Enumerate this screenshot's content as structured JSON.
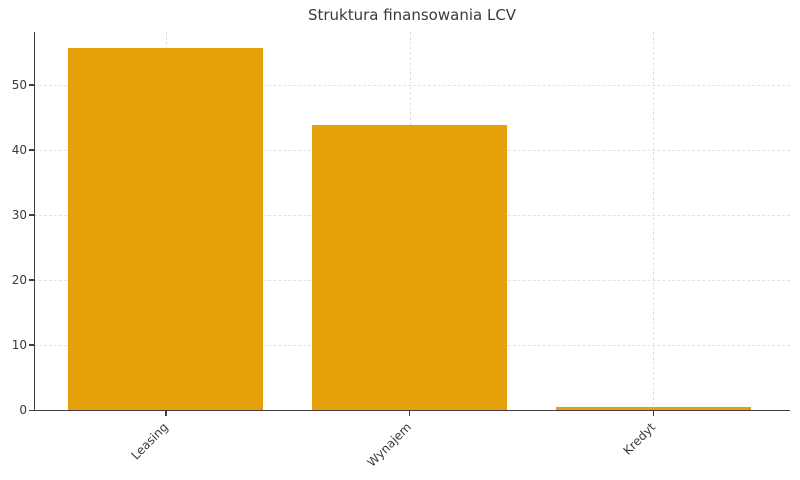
{
  "chart_data": {
    "type": "bar",
    "title": "Struktura finansowania LCV",
    "categories": [
      "Leasing",
      "Wynajem",
      "Kredyt"
    ],
    "values": [
      55.7,
      43.8,
      0.5
    ],
    "xlabel": "",
    "ylabel": "",
    "ylim": [
      0,
      58.15
    ],
    "yticks": [
      0,
      10,
      20,
      30,
      40,
      50
    ],
    "grid": true,
    "legend": false,
    "x_tick_rotation": 45,
    "bar_width_fraction": 0.8,
    "colors": {
      "bar": "#E6A00A",
      "axis": "#3f3f3f",
      "grid": "#e2e2e2",
      "text": "#3a3a3a",
      "background": "#ffffff"
    }
  }
}
